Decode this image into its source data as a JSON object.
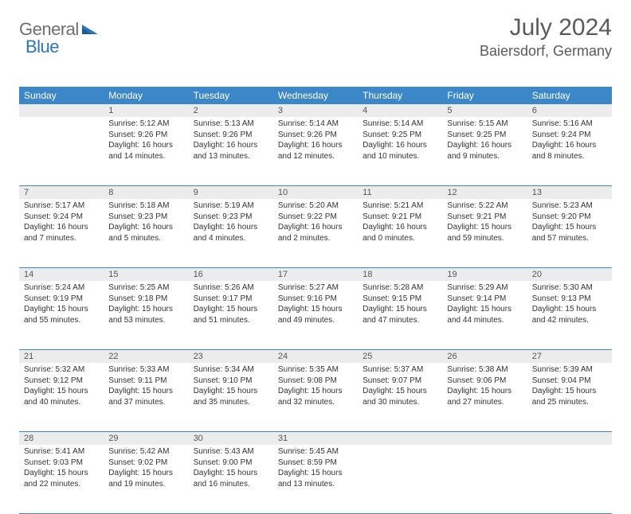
{
  "brand": {
    "part1": "General",
    "part2": "Blue"
  },
  "title": "July 2024",
  "location": "Baiersdorf, Germany",
  "colors": {
    "header_bg": "#3b87c8",
    "header_text": "#ffffff",
    "daynum_bg": "#ececec",
    "border": "#3b87c8",
    "body_text": "#333333",
    "brand_gray": "#6f6f6f",
    "brand_blue": "#2a76bb"
  },
  "typography": {
    "title_fontsize": 30,
    "location_fontsize": 18,
    "dow_fontsize": 12,
    "cell_fontsize": 10
  },
  "dow": [
    "Sunday",
    "Monday",
    "Tuesday",
    "Wednesday",
    "Thursday",
    "Friday",
    "Saturday"
  ],
  "weeks": [
    [
      {
        "n": "",
        "sr": "",
        "ss": "",
        "dl": ""
      },
      {
        "n": "1",
        "sr": "Sunrise: 5:12 AM",
        "ss": "Sunset: 9:26 PM",
        "dl": "Daylight: 16 hours and 14 minutes."
      },
      {
        "n": "2",
        "sr": "Sunrise: 5:13 AM",
        "ss": "Sunset: 9:26 PM",
        "dl": "Daylight: 16 hours and 13 minutes."
      },
      {
        "n": "3",
        "sr": "Sunrise: 5:14 AM",
        "ss": "Sunset: 9:26 PM",
        "dl": "Daylight: 16 hours and 12 minutes."
      },
      {
        "n": "4",
        "sr": "Sunrise: 5:14 AM",
        "ss": "Sunset: 9:25 PM",
        "dl": "Daylight: 16 hours and 10 minutes."
      },
      {
        "n": "5",
        "sr": "Sunrise: 5:15 AM",
        "ss": "Sunset: 9:25 PM",
        "dl": "Daylight: 16 hours and 9 minutes."
      },
      {
        "n": "6",
        "sr": "Sunrise: 5:16 AM",
        "ss": "Sunset: 9:24 PM",
        "dl": "Daylight: 16 hours and 8 minutes."
      }
    ],
    [
      {
        "n": "7",
        "sr": "Sunrise: 5:17 AM",
        "ss": "Sunset: 9:24 PM",
        "dl": "Daylight: 16 hours and 7 minutes."
      },
      {
        "n": "8",
        "sr": "Sunrise: 5:18 AM",
        "ss": "Sunset: 9:23 PM",
        "dl": "Daylight: 16 hours and 5 minutes."
      },
      {
        "n": "9",
        "sr": "Sunrise: 5:19 AM",
        "ss": "Sunset: 9:23 PM",
        "dl": "Daylight: 16 hours and 4 minutes."
      },
      {
        "n": "10",
        "sr": "Sunrise: 5:20 AM",
        "ss": "Sunset: 9:22 PM",
        "dl": "Daylight: 16 hours and 2 minutes."
      },
      {
        "n": "11",
        "sr": "Sunrise: 5:21 AM",
        "ss": "Sunset: 9:21 PM",
        "dl": "Daylight: 16 hours and 0 minutes."
      },
      {
        "n": "12",
        "sr": "Sunrise: 5:22 AM",
        "ss": "Sunset: 9:21 PM",
        "dl": "Daylight: 15 hours and 59 minutes."
      },
      {
        "n": "13",
        "sr": "Sunrise: 5:23 AM",
        "ss": "Sunset: 9:20 PM",
        "dl": "Daylight: 15 hours and 57 minutes."
      }
    ],
    [
      {
        "n": "14",
        "sr": "Sunrise: 5:24 AM",
        "ss": "Sunset: 9:19 PM",
        "dl": "Daylight: 15 hours and 55 minutes."
      },
      {
        "n": "15",
        "sr": "Sunrise: 5:25 AM",
        "ss": "Sunset: 9:18 PM",
        "dl": "Daylight: 15 hours and 53 minutes."
      },
      {
        "n": "16",
        "sr": "Sunrise: 5:26 AM",
        "ss": "Sunset: 9:17 PM",
        "dl": "Daylight: 15 hours and 51 minutes."
      },
      {
        "n": "17",
        "sr": "Sunrise: 5:27 AM",
        "ss": "Sunset: 9:16 PM",
        "dl": "Daylight: 15 hours and 49 minutes."
      },
      {
        "n": "18",
        "sr": "Sunrise: 5:28 AM",
        "ss": "Sunset: 9:15 PM",
        "dl": "Daylight: 15 hours and 47 minutes."
      },
      {
        "n": "19",
        "sr": "Sunrise: 5:29 AM",
        "ss": "Sunset: 9:14 PM",
        "dl": "Daylight: 15 hours and 44 minutes."
      },
      {
        "n": "20",
        "sr": "Sunrise: 5:30 AM",
        "ss": "Sunset: 9:13 PM",
        "dl": "Daylight: 15 hours and 42 minutes."
      }
    ],
    [
      {
        "n": "21",
        "sr": "Sunrise: 5:32 AM",
        "ss": "Sunset: 9:12 PM",
        "dl": "Daylight: 15 hours and 40 minutes."
      },
      {
        "n": "22",
        "sr": "Sunrise: 5:33 AM",
        "ss": "Sunset: 9:11 PM",
        "dl": "Daylight: 15 hours and 37 minutes."
      },
      {
        "n": "23",
        "sr": "Sunrise: 5:34 AM",
        "ss": "Sunset: 9:10 PM",
        "dl": "Daylight: 15 hours and 35 minutes."
      },
      {
        "n": "24",
        "sr": "Sunrise: 5:35 AM",
        "ss": "Sunset: 9:08 PM",
        "dl": "Daylight: 15 hours and 32 minutes."
      },
      {
        "n": "25",
        "sr": "Sunrise: 5:37 AM",
        "ss": "Sunset: 9:07 PM",
        "dl": "Daylight: 15 hours and 30 minutes."
      },
      {
        "n": "26",
        "sr": "Sunrise: 5:38 AM",
        "ss": "Sunset: 9:06 PM",
        "dl": "Daylight: 15 hours and 27 minutes."
      },
      {
        "n": "27",
        "sr": "Sunrise: 5:39 AM",
        "ss": "Sunset: 9:04 PM",
        "dl": "Daylight: 15 hours and 25 minutes."
      }
    ],
    [
      {
        "n": "28",
        "sr": "Sunrise: 5:41 AM",
        "ss": "Sunset: 9:03 PM",
        "dl": "Daylight: 15 hours and 22 minutes."
      },
      {
        "n": "29",
        "sr": "Sunrise: 5:42 AM",
        "ss": "Sunset: 9:02 PM",
        "dl": "Daylight: 15 hours and 19 minutes."
      },
      {
        "n": "30",
        "sr": "Sunrise: 5:43 AM",
        "ss": "Sunset: 9:00 PM",
        "dl": "Daylight: 15 hours and 16 minutes."
      },
      {
        "n": "31",
        "sr": "Sunrise: 5:45 AM",
        "ss": "Sunset: 8:59 PM",
        "dl": "Daylight: 15 hours and 13 minutes."
      },
      {
        "n": "",
        "sr": "",
        "ss": "",
        "dl": ""
      },
      {
        "n": "",
        "sr": "",
        "ss": "",
        "dl": ""
      },
      {
        "n": "",
        "sr": "",
        "ss": "",
        "dl": ""
      }
    ]
  ]
}
